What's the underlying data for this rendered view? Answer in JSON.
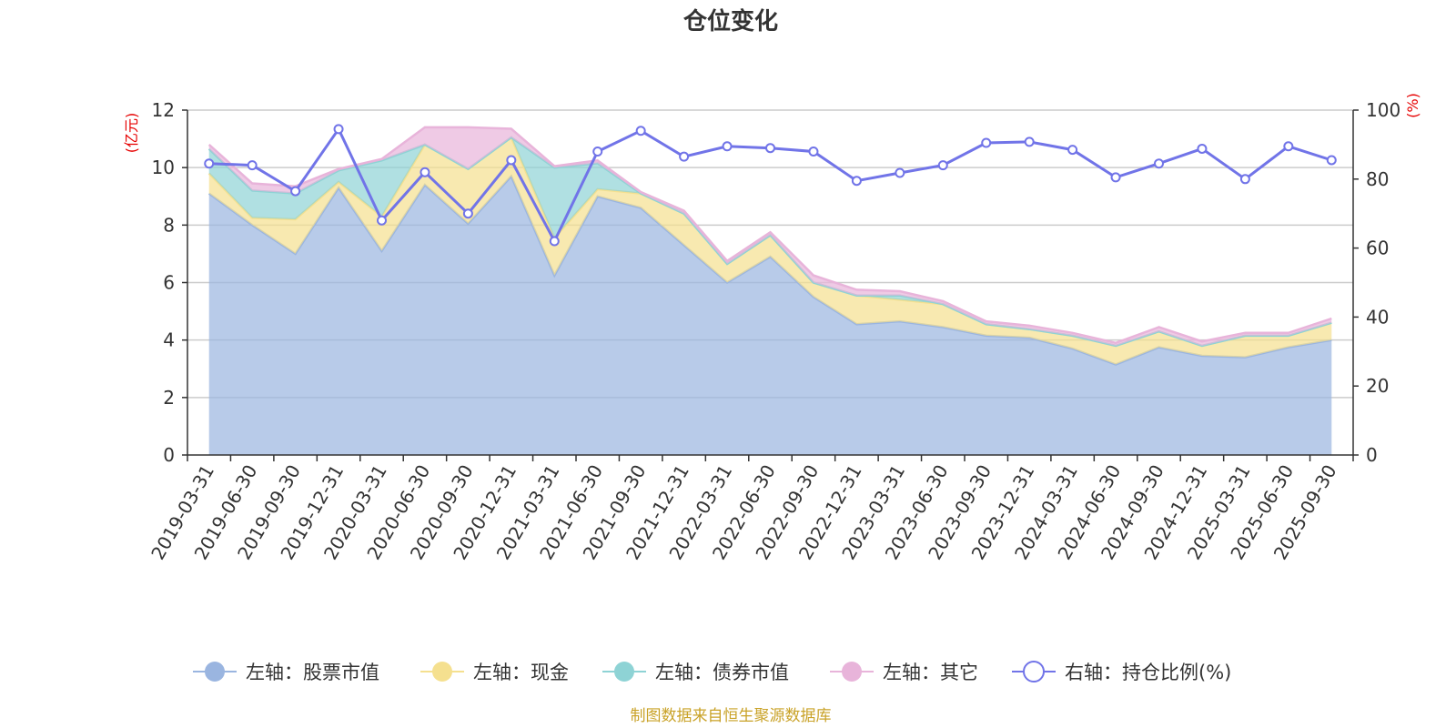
{
  "chart_data": {
    "type": "area",
    "title": "仓位变化",
    "left_unit": "(亿元)",
    "right_unit": "(%)",
    "categories": [
      "2019-03-31",
      "2019-06-30",
      "2019-09-30",
      "2019-12-31",
      "2020-03-31",
      "2020-06-30",
      "2020-09-30",
      "2020-12-31",
      "2021-03-31",
      "2021-06-30",
      "2021-09-30",
      "2021-12-31",
      "2022-03-31",
      "2022-06-30",
      "2022-09-30",
      "2022-12-31",
      "2023-03-31",
      "2023-06-30",
      "2023-09-30",
      "2023-12-31",
      "2024-03-31",
      "2024-06-30",
      "2024-09-30",
      "2024-12-31",
      "2025-03-31",
      "2025-06-30",
      "2025-09-30"
    ],
    "left_axis": {
      "min": 0,
      "max": 12,
      "ticks": [
        0,
        2,
        4,
        6,
        8,
        10,
        12
      ]
    },
    "right_axis": {
      "min": 0,
      "max": 100,
      "ticks": [
        0,
        20,
        40,
        60,
        80,
        100
      ]
    },
    "series": [
      {
        "name": "左轴：股票市值",
        "axis": "left",
        "color": "#9ab5e0",
        "values": [
          9.1,
          8.0,
          7.0,
          9.3,
          7.1,
          9.4,
          8.05,
          9.7,
          6.25,
          9.0,
          8.6,
          7.3,
          6.0,
          6.9,
          5.5,
          4.55,
          4.65,
          4.45,
          4.15,
          4.08,
          3.7,
          3.15,
          3.75,
          3.45,
          3.4,
          3.75,
          4.0
        ]
      },
      {
        "name": "左轴：现金",
        "axis": "left",
        "color": "#f5e08f",
        "values": [
          0.7,
          0.25,
          1.2,
          0.2,
          1.2,
          1.4,
          1.9,
          1.35,
          1.3,
          0.25,
          0.5,
          1.1,
          0.65,
          0.75,
          0.5,
          1.0,
          0.75,
          0.8,
          0.4,
          0.3,
          0.45,
          0.65,
          0.55,
          0.35,
          0.75,
          0.4,
          0.6
        ]
      },
      {
        "name": "左轴：债券市值",
        "axis": "left",
        "color": "#8ed3d5",
        "values": [
          0.85,
          0.95,
          0.9,
          0.4,
          1.95,
          0,
          0,
          0,
          2.45,
          0.9,
          0,
          0,
          0,
          0,
          0,
          0,
          0.15,
          0,
          0,
          0,
          0,
          0,
          0,
          0,
          0,
          0,
          0
        ]
      },
      {
        "name": "左轴：其它",
        "axis": "left",
        "color": "#e8b4da",
        "values": [
          0.15,
          0.25,
          0.25,
          0.05,
          0.05,
          0.6,
          1.45,
          0.3,
          0.05,
          0.1,
          0.05,
          0.1,
          0.1,
          0.1,
          0.25,
          0.2,
          0.15,
          0.1,
          0.1,
          0.12,
          0.1,
          0.1,
          0.15,
          0.15,
          0.1,
          0.1,
          0.15
        ]
      },
      {
        "name": "右轴：持仓比例(%)",
        "axis": "right",
        "color": "#7174e8",
        "values": [
          84.5,
          84.0,
          76.5,
          94.5,
          68.0,
          82.0,
          70.0,
          85.5,
          62.0,
          88.0,
          94.0,
          86.5,
          89.5,
          89.0,
          88.0,
          79.5,
          81.8,
          84.0,
          90.5,
          90.8,
          88.5,
          80.5,
          84.5,
          88.8,
          80.0,
          89.5,
          85.5
        ]
      }
    ]
  },
  "footer": {
    "source": "制图数据来自恒生聚源数据库"
  }
}
